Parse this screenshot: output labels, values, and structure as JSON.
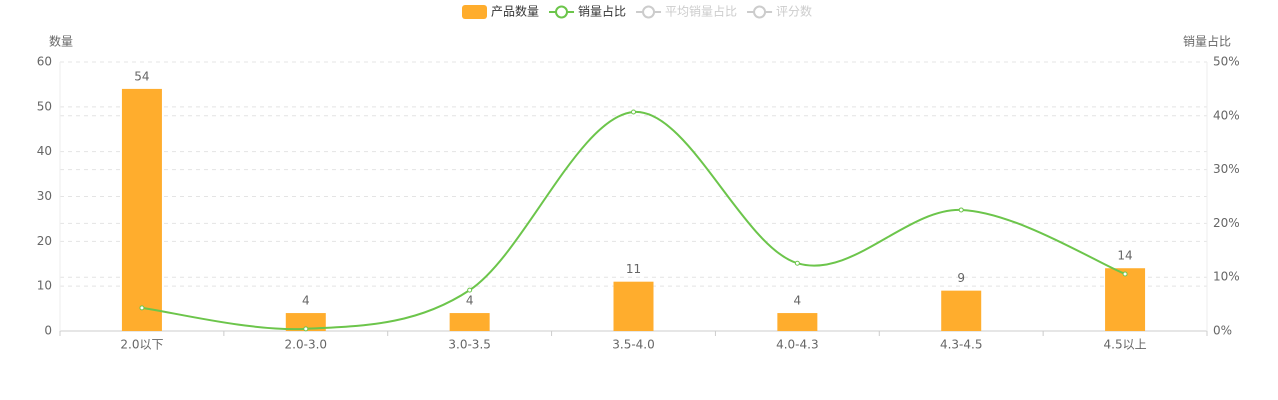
{
  "chart_data": {
    "type": "bar-line",
    "categories": [
      "2.0以下",
      "2.0-3.0",
      "3.0-3.5",
      "3.5-4.0",
      "4.0-4.3",
      "4.3-4.5",
      "4.5以上"
    ],
    "series": [
      {
        "name": "产品数量",
        "type": "bar",
        "color": "#ffad2d",
        "values": [
          54,
          4,
          4,
          11,
          4,
          9,
          14
        ]
      },
      {
        "name": "销量占比",
        "type": "line",
        "axis": "y2",
        "color": "#6cc54b",
        "values": [
          4.3,
          0.4,
          7.6,
          40.7,
          12.6,
          22.5,
          10.6
        ]
      },
      {
        "name": "平均销量占比",
        "type": "line",
        "color": "#cccccc",
        "visible": false
      },
      {
        "name": "评分数",
        "type": "line",
        "color": "#cccccc",
        "visible": false
      }
    ],
    "ylabel": "数量",
    "y2label": "销量占比",
    "ylim": [
      0,
      60
    ],
    "yticks": [
      0,
      10,
      20,
      30,
      40,
      50,
      60
    ],
    "y2lim": [
      0,
      50
    ],
    "y2ticks": [
      {
        "value": 0,
        "label": "0%"
      },
      {
        "value": 10,
        "label": "10%"
      },
      {
        "value": 20,
        "label": "20%"
      },
      {
        "value": 30,
        "label": "30%"
      },
      {
        "value": 40,
        "label": "40%"
      },
      {
        "value": 50,
        "label": "50%"
      }
    ],
    "grid": true,
    "legend": "top"
  }
}
